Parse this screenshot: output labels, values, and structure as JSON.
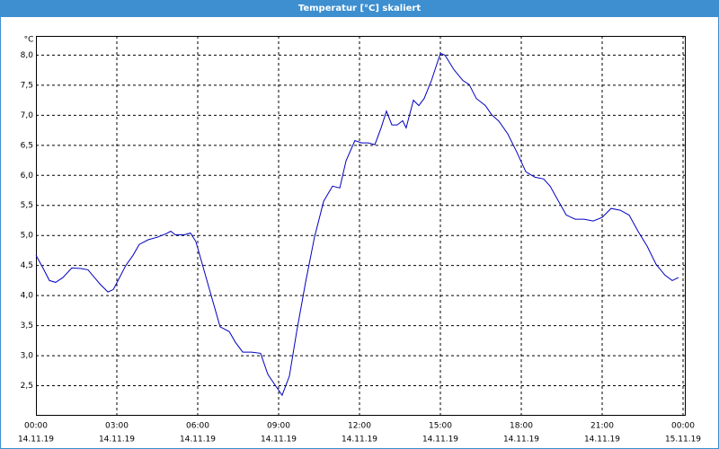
{
  "chart_data": {
    "type": "line",
    "title": "Temperatur [°C] skaliert",
    "y_label": "°C",
    "x": [
      0,
      0.27,
      0.5,
      0.73,
      1,
      1.33,
      1.67,
      1.93,
      2.17,
      2.4,
      2.67,
      2.87,
      3.1,
      3.33,
      3.6,
      3.83,
      4.17,
      4.5,
      4.83,
      5,
      5.17,
      5.5,
      5.73,
      5.93,
      6.17,
      6.5,
      6.83,
      7.17,
      7.4,
      7.67,
      8,
      8.33,
      8.6,
      8.87,
      9.13,
      9.4,
      9.67,
      10,
      10.33,
      10.67,
      11,
      11.27,
      11.5,
      11.83,
      12.07,
      12.33,
      12.57,
      12.8,
      13,
      13.2,
      13.4,
      13.6,
      13.73,
      14,
      14.2,
      14.4,
      14.67,
      15,
      15.17,
      15.5,
      15.83,
      16.07,
      16.33,
      16.67,
      16.9,
      17.17,
      17.5,
      17.83,
      18.17,
      18.5,
      18.83,
      19.07,
      19.33,
      19.67,
      20,
      20.33,
      20.67,
      21,
      21.33,
      21.67,
      22,
      22.33,
      22.67,
      23,
      23.33,
      23.6,
      23.83
    ],
    "series": [
      {
        "color": "#0000c0",
        "values": [
          4.67,
          4.45,
          4.25,
          4.22,
          4.3,
          4.46,
          4.45,
          4.43,
          4.3,
          4.18,
          4.06,
          4.1,
          4.3,
          4.5,
          4.67,
          4.85,
          4.93,
          4.97,
          5.03,
          5.07,
          5.01,
          5.01,
          5.04,
          4.9,
          4.52,
          4,
          3.48,
          3.4,
          3.22,
          3.06,
          3.06,
          3.04,
          2.69,
          2.51,
          2.34,
          2.66,
          3.4,
          4.22,
          4.97,
          5.57,
          5.82,
          5.79,
          6.24,
          6.58,
          6.54,
          6.54,
          6.51,
          6.79,
          7.07,
          6.84,
          6.84,
          6.91,
          6.79,
          7.25,
          7.16,
          7.28,
          7.58,
          8.03,
          8.0,
          7.76,
          7.58,
          7.51,
          7.28,
          7.16,
          7.01,
          6.9,
          6.69,
          6.39,
          6.06,
          5.97,
          5.94,
          5.82,
          5.61,
          5.34,
          5.27,
          5.27,
          5.24,
          5.3,
          5.45,
          5.42,
          5.34,
          5.07,
          4.82,
          4.52,
          4.34,
          4.25,
          4.3
        ]
      }
    ],
    "xlim": [
      0,
      24.1
    ],
    "xticks": [
      {
        "value": 0,
        "label": "00:00",
        "date": "14.11.19"
      },
      {
        "value": 3,
        "label": "03:00",
        "date": "14.11.19"
      },
      {
        "value": 6,
        "label": "06:00",
        "date": "14.11.19"
      },
      {
        "value": 9,
        "label": "09:00",
        "date": "14.11.19"
      },
      {
        "value": 12,
        "label": "12:00",
        "date": "14.11.19"
      },
      {
        "value": 15,
        "label": "15:00",
        "date": "14.11.19"
      },
      {
        "value": 18,
        "label": "18:00",
        "date": "14.11.19"
      },
      {
        "value": 21,
        "label": "21:00",
        "date": "14.11.19"
      },
      {
        "value": 24,
        "label": "00:00",
        "date": "15.11.19"
      }
    ],
    "ylim": [
      2,
      8.32
    ],
    "yticks": [
      {
        "value": 2.5,
        "label": "2,5"
      },
      {
        "value": 3,
        "label": "3,0"
      },
      {
        "value": 3.5,
        "label": "3,5"
      },
      {
        "value": 4,
        "label": "4,0"
      },
      {
        "value": 4.5,
        "label": "4,5"
      },
      {
        "value": 5,
        "label": "5,0"
      },
      {
        "value": 5.5,
        "label": "5,5"
      },
      {
        "value": 6,
        "label": "6,0"
      },
      {
        "value": 6.5,
        "label": "6,5"
      },
      {
        "value": 7,
        "label": "7,0"
      },
      {
        "value": 7.5,
        "label": "7,5"
      },
      {
        "value": 8,
        "label": "8,0"
      }
    ],
    "grid": true
  }
}
